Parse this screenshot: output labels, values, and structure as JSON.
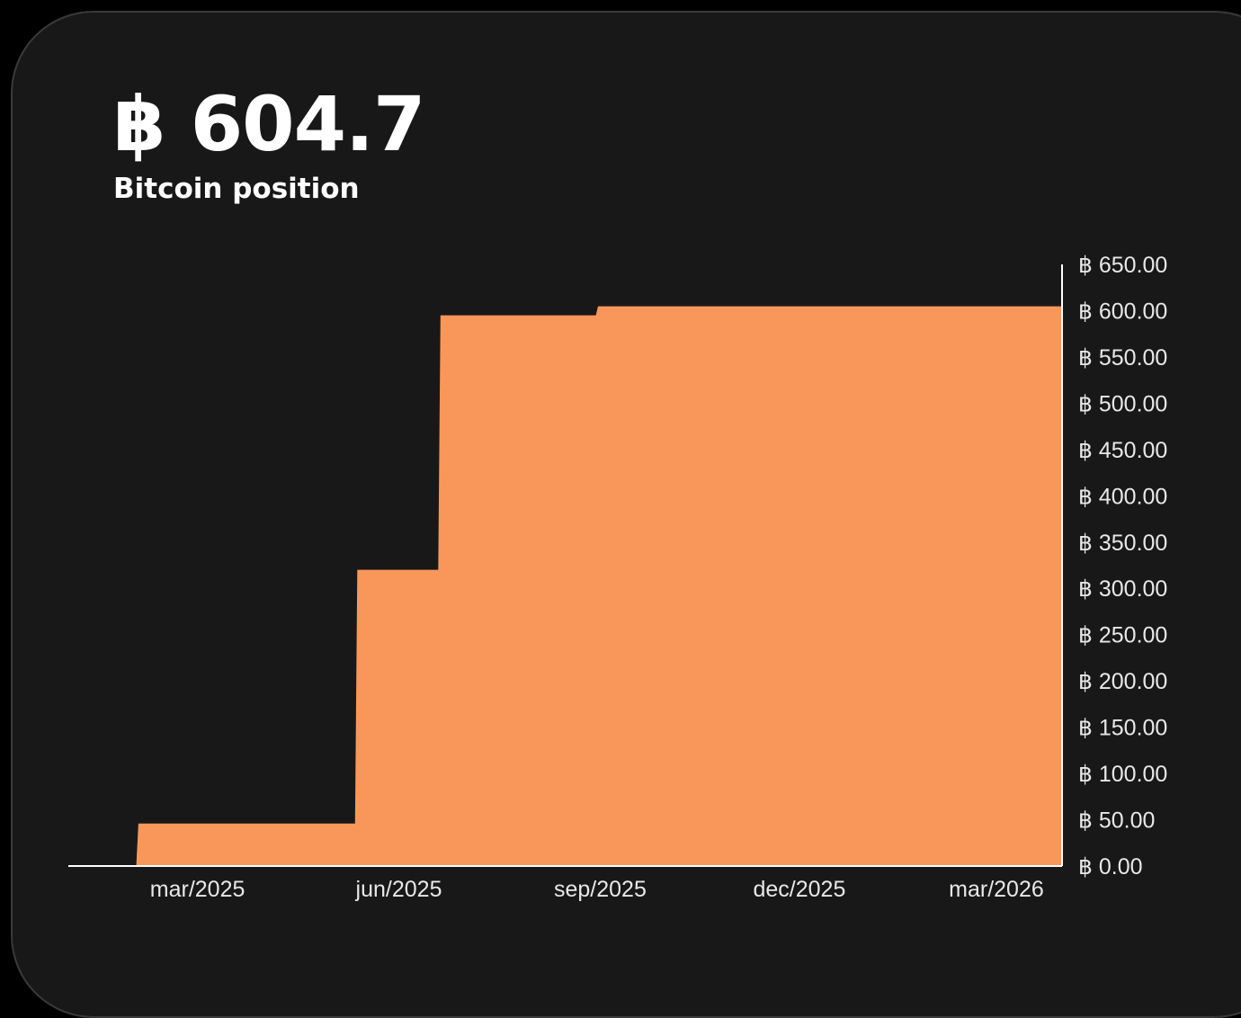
{
  "header": {
    "value": "฿ 604.7",
    "label": "Bitcoin position"
  },
  "colors": {
    "background": "#181818",
    "area_fill": "#f9975a",
    "axis": "#ffffff",
    "text": "#ffffff"
  },
  "chart_data": {
    "type": "area",
    "title": "",
    "xlabel": "",
    "ylabel": "",
    "x_axis": {
      "ticks": [
        {
          "date": "2025-03-01",
          "label": "mar/2025"
        },
        {
          "date": "2025-06-01",
          "label": "jun/2025"
        },
        {
          "date": "2025-09-01",
          "label": "sep/2025"
        },
        {
          "date": "2025-12-01",
          "label": "dec/2025"
        },
        {
          "date": "2026-03-01",
          "label": "mar/2026"
        }
      ],
      "range": [
        "2025-01-01",
        "2026-03-31"
      ]
    },
    "y_axis": {
      "position": "right",
      "ticks": [
        {
          "value": 650,
          "label": "฿ 650.00"
        },
        {
          "value": 600,
          "label": "฿ 600.00"
        },
        {
          "value": 550,
          "label": "฿ 550.00"
        },
        {
          "value": 500,
          "label": "฿ 500.00"
        },
        {
          "value": 450,
          "label": "฿ 450.00"
        },
        {
          "value": 400,
          "label": "฿ 400.00"
        },
        {
          "value": 350,
          "label": "฿ 350.00"
        },
        {
          "value": 300,
          "label": "฿ 300.00"
        },
        {
          "value": 250,
          "label": "฿ 250.00"
        },
        {
          "value": 200,
          "label": "฿ 200.00"
        },
        {
          "value": 150,
          "label": "฿ 150.00"
        },
        {
          "value": 100,
          "label": "฿ 100.00"
        },
        {
          "value": 50,
          "label": "฿ 50.00"
        },
        {
          "value": 0,
          "label": "฿ 0.00"
        }
      ],
      "range": [
        0,
        650
      ]
    },
    "grid": false,
    "legend": "none",
    "series": [
      {
        "points": [
          {
            "date": "2025-01-01",
            "value": 0
          },
          {
            "date": "2025-02-01",
            "value": 0
          },
          {
            "date": "2025-02-02",
            "value": 46
          },
          {
            "date": "2025-05-12",
            "value": 46
          },
          {
            "date": "2025-05-13",
            "value": 320
          },
          {
            "date": "2025-06-19",
            "value": 320
          },
          {
            "date": "2025-06-20",
            "value": 595
          },
          {
            "date": "2025-08-30",
            "value": 595
          },
          {
            "date": "2025-08-31",
            "value": 604.7
          },
          {
            "date": "2026-03-31",
            "value": 604.7
          }
        ]
      }
    ]
  }
}
